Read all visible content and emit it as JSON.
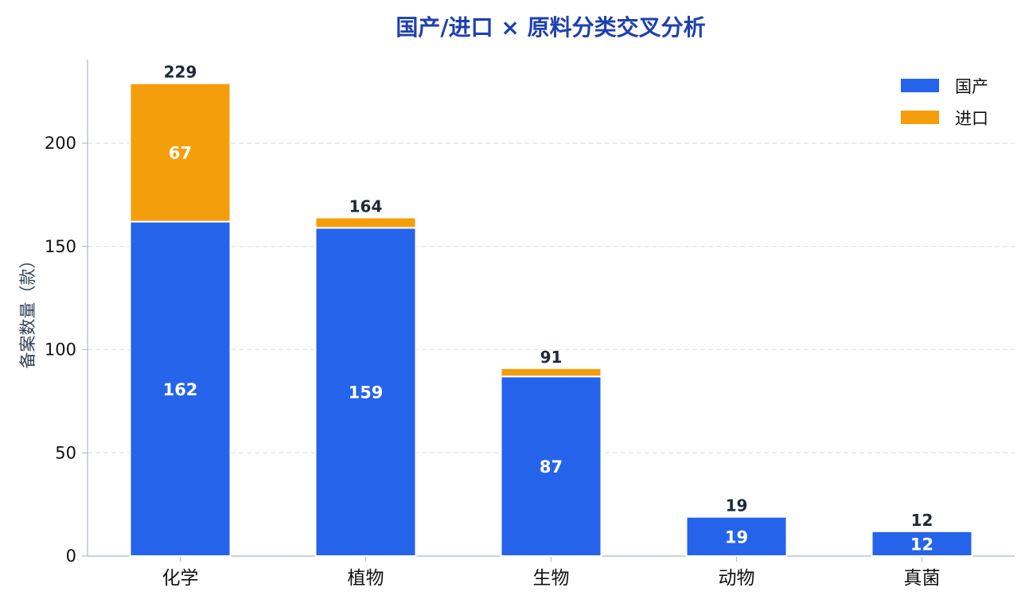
{
  "chart_data": {
    "type": "bar",
    "stacked": true,
    "title": "国产/进口 × 原料分类交叉分析",
    "ylabel": "备案数量（款）",
    "xlabel": "",
    "categories": [
      "化学",
      "植物",
      "生物",
      "动物",
      "真菌"
    ],
    "series": [
      {
        "name": "国产",
        "color": "#2563eb",
        "values": [
          162,
          159,
          87,
          19,
          12
        ]
      },
      {
        "name": "进口",
        "color": "#f59e0b",
        "values": [
          67,
          5,
          4,
          0,
          0
        ]
      }
    ],
    "totals": [
      229,
      164,
      91,
      19,
      12
    ],
    "ylim": [
      0,
      240
    ],
    "yticks": [
      0,
      50,
      100,
      150,
      200
    ],
    "grid": true,
    "legend_position": "top-right"
  }
}
